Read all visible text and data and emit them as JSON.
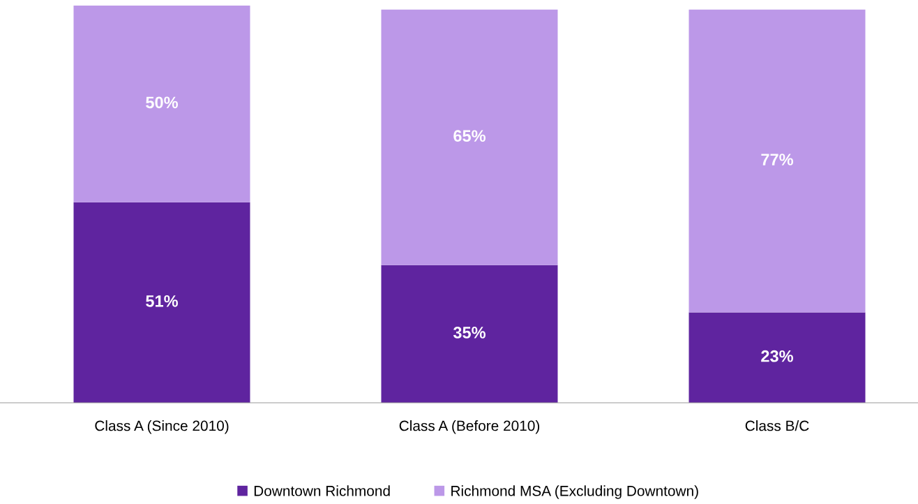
{
  "chart_data": {
    "type": "bar",
    "stacked": true,
    "legend": "bottom",
    "categories": [
      "Class A (Since 2010)",
      "Class A (Before 2010)",
      "Class B/C"
    ],
    "series": [
      {
        "name": "Downtown Richmond",
        "color": "#5f249f",
        "values": [
          51,
          35,
          23
        ],
        "value_labels": [
          "51%",
          "35%",
          "23%"
        ]
      },
      {
        "name": "Richmond MSA (Excluding Downtown)",
        "color": "#bc98e8",
        "values": [
          50,
          65,
          77
        ],
        "value_labels": [
          "50%",
          "65%",
          "77%"
        ]
      }
    ]
  }
}
